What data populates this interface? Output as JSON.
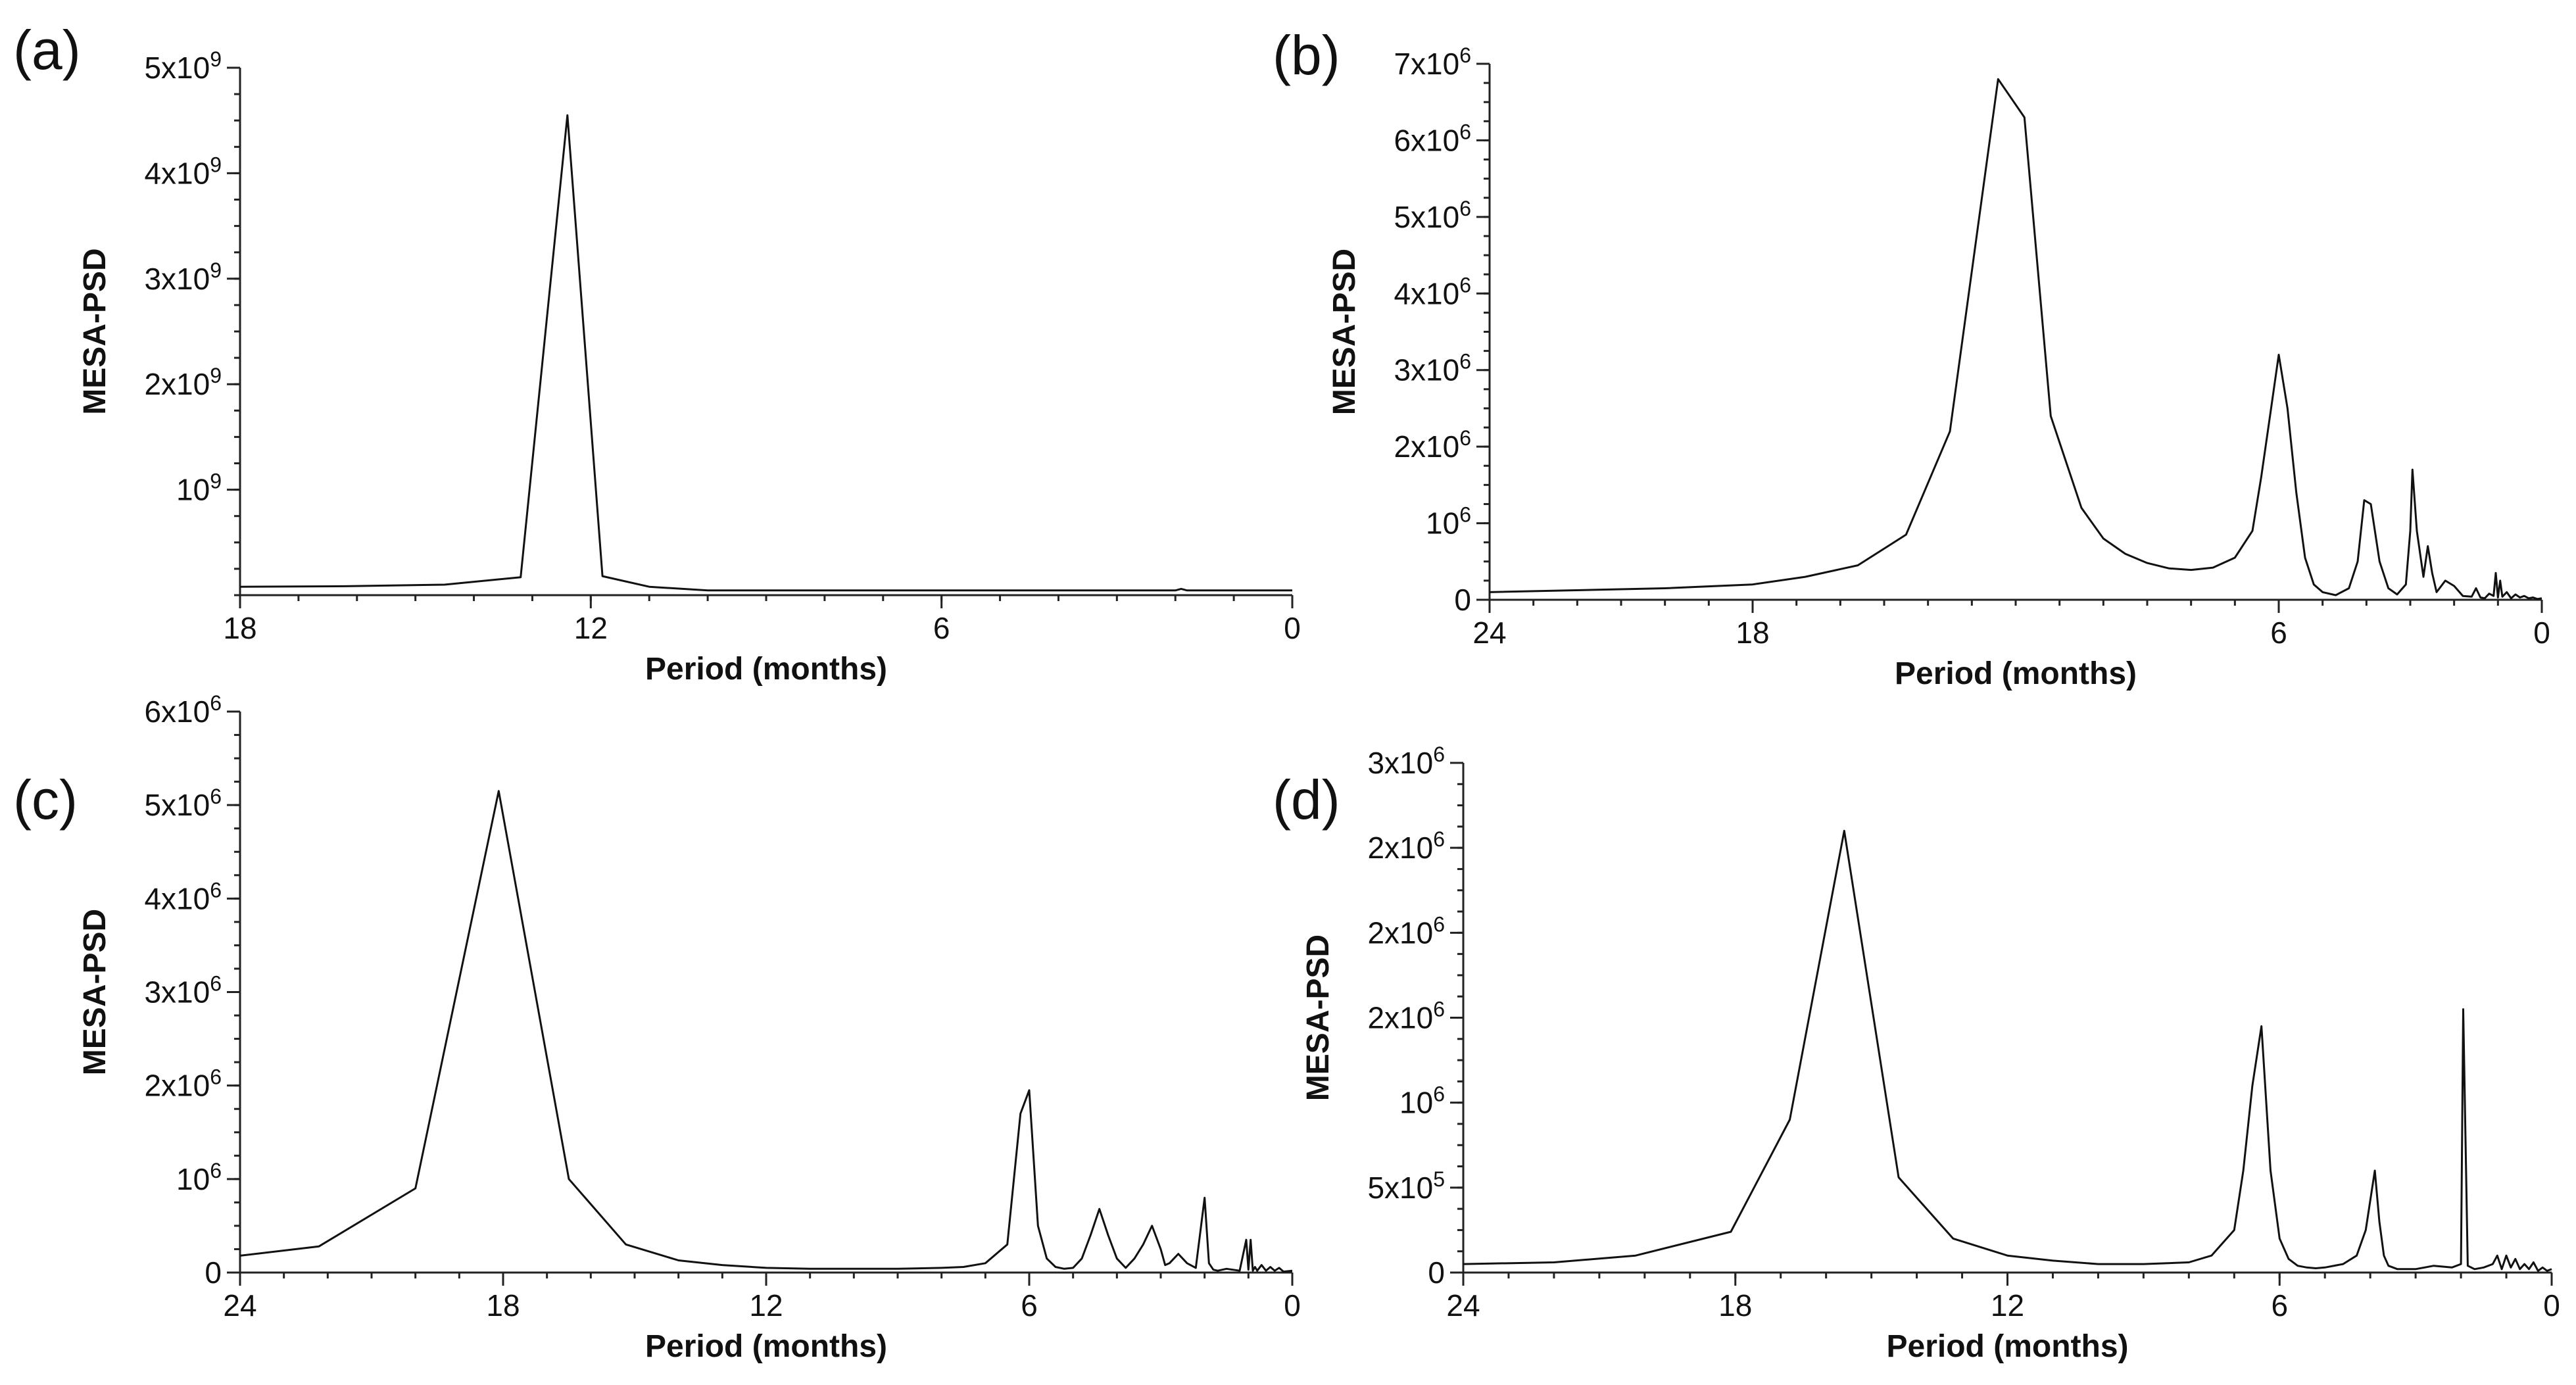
{
  "chart_data": [
    {
      "panel_label": "(a)",
      "type": "line",
      "xlabel": "Period (months)",
      "ylabel": "MESA-PSD",
      "xlim": [
        18,
        0
      ],
      "ylim": [
        0,
        5000000000
      ],
      "x_ticks": [
        18,
        12,
        6,
        0
      ],
      "x_tick_labels": [
        "18",
        "12",
        "6",
        "0"
      ],
      "y_ticks": [
        1000000000,
        2000000000,
        3000000000,
        4000000000,
        5000000000
      ],
      "y_tick_labels": [
        {
          "mantissa": "",
          "base": "10",
          "exp": "9"
        },
        {
          "mantissa": "2x",
          "base": "10",
          "exp": "9"
        },
        {
          "mantissa": "3x",
          "base": "10",
          "exp": "9"
        },
        {
          "mantissa": "4x",
          "base": "10",
          "exp": "9"
        },
        {
          "mantissa": "5x",
          "base": "10",
          "exp": "9"
        }
      ],
      "x_minor_step": 1,
      "y_minor_step": 250000000,
      "x": [
        18,
        16.2,
        14.5,
        13.2,
        12.4,
        11.8,
        11.0,
        10.0,
        8,
        6,
        4,
        2,
        1.9,
        1.8,
        0
      ],
      "y": [
        80000000,
        85000000,
        100000000,
        170000000,
        4550000000,
        180000000,
        80000000,
        45000000,
        45000000,
        45000000,
        45000000,
        45000000,
        60000000,
        45000000,
        45000000
      ]
    },
    {
      "panel_label": "(b)",
      "type": "line",
      "xlabel": "Period (months)",
      "ylabel": "MESA-PSD",
      "xlim": [
        24,
        0
      ],
      "ylim": [
        0,
        7000000
      ],
      "x_ticks": [
        24,
        18,
        6,
        0
      ],
      "x_tick_labels": [
        "24",
        "18",
        "6",
        "0"
      ],
      "y_ticks": [
        0,
        1000000,
        2000000,
        3000000,
        4000000,
        5000000,
        6000000,
        7000000
      ],
      "y_tick_labels": [
        {
          "mantissa": "0",
          "base": "",
          "exp": ""
        },
        {
          "mantissa": "",
          "base": "10",
          "exp": "6"
        },
        {
          "mantissa": "2x",
          "base": "10",
          "exp": "6"
        },
        {
          "mantissa": "3x",
          "base": "10",
          "exp": "6"
        },
        {
          "mantissa": "4x",
          "base": "10",
          "exp": "6"
        },
        {
          "mantissa": "5x",
          "base": "10",
          "exp": "6"
        },
        {
          "mantissa": "6x",
          "base": "10",
          "exp": "6"
        },
        {
          "mantissa": "7x",
          "base": "10",
          "exp": "6"
        }
      ],
      "x_minor_step": 1,
      "y_minor_step": 250000,
      "x": [
        24,
        20,
        18,
        16.8,
        15.6,
        14.5,
        13.5,
        12.4,
        11.8,
        11.2,
        10.5,
        10,
        9.5,
        9,
        8.5,
        8,
        7.5,
        7,
        6.6,
        6.4,
        6.2,
        6.0,
        5.8,
        5.6,
        5.4,
        5.2,
        5,
        4.7,
        4.4,
        4.2,
        4.05,
        3.9,
        3.7,
        3.5,
        3.3,
        3.1,
        3.0,
        2.95,
        2.85,
        2.7,
        2.6,
        2.5,
        2.4,
        2.2,
        2.0,
        1.8,
        1.6,
        1.5,
        1.4,
        1.3,
        1.2,
        1.1,
        1.05,
        1.0,
        0.95,
        0.9,
        0.8,
        0.7,
        0.6,
        0.5,
        0.4,
        0.3,
        0.2,
        0.1,
        0
      ],
      "y": [
        100000,
        150000,
        200000,
        300000,
        450000,
        850000,
        2200000,
        6800000,
        6300000,
        2400000,
        1200000,
        800000,
        600000,
        480000,
        410000,
        390000,
        420000,
        550000,
        900000,
        1600000,
        2400000,
        3200000,
        2500000,
        1400000,
        550000,
        200000,
        100000,
        60000,
        150000,
        500000,
        1300000,
        1250000,
        500000,
        150000,
        70000,
        200000,
        900000,
        1700000,
        900000,
        300000,
        700000,
        350000,
        100000,
        250000,
        180000,
        50000,
        40000,
        150000,
        30000,
        20000,
        80000,
        50000,
        350000,
        30000,
        250000,
        40000,
        100000,
        20000,
        70000,
        30000,
        50000,
        20000,
        30000,
        10000,
        20000
      ]
    },
    {
      "panel_label": "(c)",
      "type": "line",
      "xlabel": "Period (months)",
      "ylabel": "MESA-PSD",
      "xlim": [
        24,
        0
      ],
      "ylim": [
        0,
        6000000
      ],
      "x_ticks": [
        24,
        18,
        12,
        6,
        0
      ],
      "x_tick_labels": [
        "24",
        "18",
        "12",
        "6",
        "0"
      ],
      "y_ticks": [
        0,
        1000000,
        2000000,
        3000000,
        4000000,
        5000000,
        6000000
      ],
      "y_tick_labels": [
        {
          "mantissa": "0",
          "base": "",
          "exp": ""
        },
        {
          "mantissa": "",
          "base": "10",
          "exp": "6"
        },
        {
          "mantissa": "2x",
          "base": "10",
          "exp": "6"
        },
        {
          "mantissa": "3x",
          "base": "10",
          "exp": "6"
        },
        {
          "mantissa": "4x",
          "base": "10",
          "exp": "6"
        },
        {
          "mantissa": "5x",
          "base": "10",
          "exp": "6"
        },
        {
          "mantissa": "6x",
          "base": "10",
          "exp": "6"
        }
      ],
      "x_minor_step": 1,
      "y_minor_step": 250000,
      "x": [
        24,
        22.2,
        20,
        18.1,
        16.5,
        15.2,
        14,
        13,
        12,
        11,
        10,
        9,
        8,
        7.5,
        7,
        6.5,
        6.2,
        6.0,
        5.8,
        5.6,
        5.4,
        5.2,
        5.0,
        4.8,
        4.6,
        4.4,
        4.2,
        4.0,
        3.8,
        3.6,
        3.4,
        3.2,
        3.0,
        2.9,
        2.8,
        2.6,
        2.4,
        2.2,
        2.0,
        1.9,
        1.8,
        1.7,
        1.5,
        1.2,
        1.05,
        1.0,
        0.95,
        0.9,
        0.85,
        0.8,
        0.7,
        0.6,
        0.5,
        0.4,
        0.3,
        0.2,
        0
      ],
      "y": [
        180000,
        280000,
        900000,
        5150000,
        1000000,
        300000,
        130000,
        80000,
        50000,
        40000,
        40000,
        40000,
        50000,
        60000,
        100000,
        300000,
        1700000,
        1950000,
        500000,
        150000,
        60000,
        40000,
        50000,
        150000,
        400000,
        680000,
        400000,
        150000,
        50000,
        150000,
        300000,
        500000,
        250000,
        80000,
        100000,
        200000,
        100000,
        50000,
        800000,
        100000,
        30000,
        20000,
        40000,
        20000,
        350000,
        30000,
        350000,
        20000,
        60000,
        20000,
        80000,
        20000,
        60000,
        20000,
        50000,
        10000,
        20000
      ]
    },
    {
      "panel_label": "(d)",
      "type": "line",
      "xlabel": "Period (months)",
      "ylabel": "MESA-PSD",
      "xlim": [
        24,
        0
      ],
      "ylim": [
        0,
        3000000
      ],
      "x_ticks": [
        24,
        18,
        12,
        6,
        0
      ],
      "x_tick_labels": [
        "24",
        "18",
        "12",
        "6",
        "0"
      ],
      "y_ticks": [
        0,
        500000,
        1000000,
        1500000,
        2000000,
        2500000,
        3000000
      ],
      "y_tick_labels": [
        {
          "mantissa": "0",
          "base": "",
          "exp": ""
        },
        {
          "mantissa": "5x",
          "base": "10",
          "exp": "5"
        },
        {
          "mantissa": "",
          "base": "10",
          "exp": "6"
        },
        {
          "mantissa": "2x",
          "base": "10",
          "exp": "6"
        },
        {
          "mantissa": "2x",
          "base": "10",
          "exp": "6"
        },
        {
          "mantissa": "2x",
          "base": "10",
          "exp": "6"
        },
        {
          "mantissa": "3x",
          "base": "10",
          "exp": "6"
        }
      ],
      "x_minor_step": 1,
      "y_minor_step": 125000,
      "x": [
        24,
        22,
        20.2,
        18.1,
        16.8,
        15.6,
        14.4,
        13.2,
        12,
        11,
        10,
        9,
        8,
        7.5,
        7,
        6.8,
        6.6,
        6.4,
        6.2,
        6.0,
        5.8,
        5.6,
        5.4,
        5.2,
        5.0,
        4.6,
        4.3,
        4.1,
        3.9,
        3.8,
        3.7,
        3.6,
        3.4,
        3.0,
        2.6,
        2.2,
        2.0,
        1.95,
        1.85,
        1.7,
        1.5,
        1.3,
        1.2,
        1.1,
        1.0,
        0.9,
        0.8,
        0.7,
        0.6,
        0.5,
        0.4,
        0.3,
        0.2,
        0.1,
        0
      ],
      "y": [
        50000,
        60000,
        100000,
        240000,
        900000,
        2600000,
        560000,
        200000,
        100000,
        70000,
        50000,
        50000,
        60000,
        100000,
        250000,
        600000,
        1100000,
        1450000,
        600000,
        200000,
        80000,
        40000,
        30000,
        25000,
        30000,
        50000,
        100000,
        250000,
        600000,
        300000,
        100000,
        40000,
        20000,
        20000,
        40000,
        30000,
        50000,
        1550000,
        40000,
        20000,
        30000,
        50000,
        100000,
        20000,
        100000,
        30000,
        80000,
        20000,
        50000,
        20000,
        60000,
        10000,
        30000,
        10000,
        20000
      ]
    }
  ]
}
